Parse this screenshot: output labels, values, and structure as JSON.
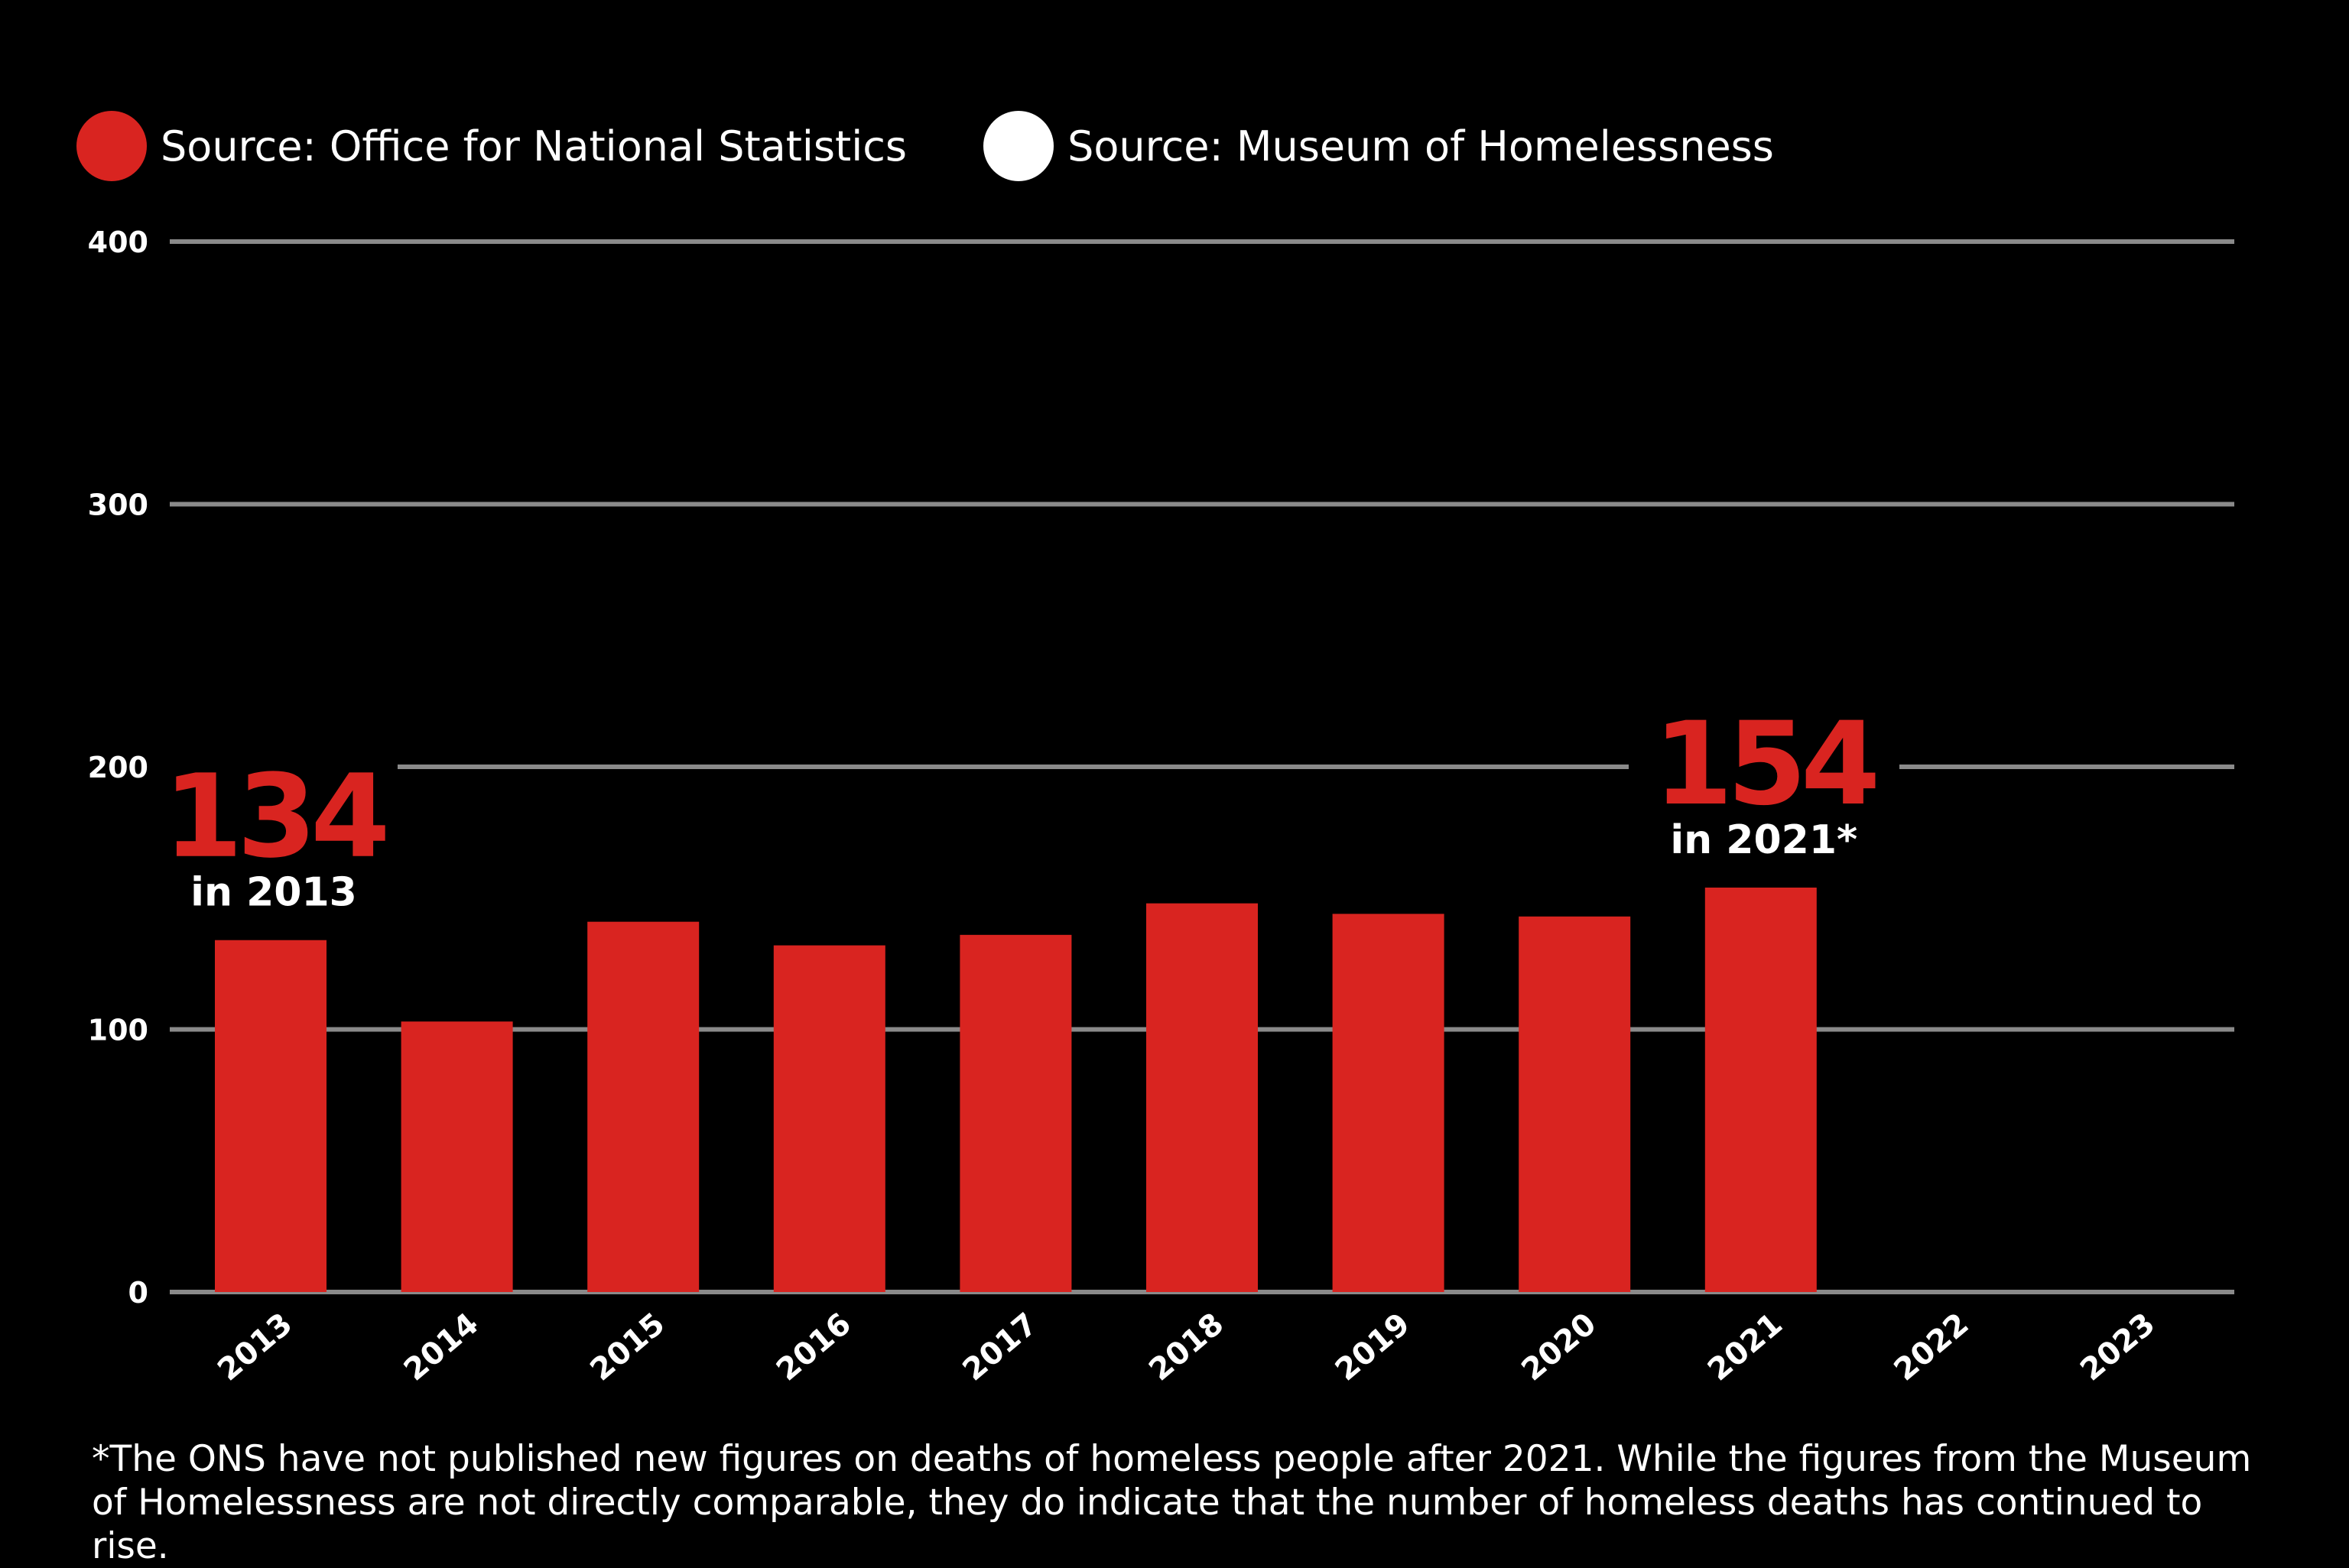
{
  "legend": [
    {
      "label": "Source: Office for National Statistics",
      "color": "#d92420"
    },
    {
      "label": "Source: Museum of Homelessness",
      "color": "#ffffff"
    }
  ],
  "chart_data": {
    "type": "bar",
    "categories": [
      "2013",
      "2014",
      "2015",
      "2016",
      "2017",
      "2018",
      "2019",
      "2020",
      "2021",
      "2022",
      "2023"
    ],
    "series": [
      {
        "name": "Source: Office for National Statistics",
        "color": "#d92420",
        "values": [
          134,
          103,
          141,
          132,
          136,
          148,
          144,
          143,
          154,
          null,
          null
        ]
      },
      {
        "name": "Source: Museum of Homelessness",
        "color": "#ffffff",
        "values": [
          null,
          null,
          null,
          null,
          null,
          null,
          null,
          null,
          null,
          null,
          null
        ]
      }
    ],
    "ylim": [
      0,
      400
    ],
    "yticks": [
      0,
      100,
      200,
      300,
      400
    ],
    "grid": true,
    "annotations": [
      {
        "category": "2013",
        "value": "134",
        "text": "in 2013"
      },
      {
        "category": "2021",
        "value": "154",
        "text": "in 2021*"
      }
    ]
  },
  "footnote": "*The ONS have not published new figures on deaths of homeless people after 2021. While the figures from the Museum of Homelessness are not directly comparable, they do indicate that the number of homeless deaths has continued to rise.",
  "colors": {
    "background": "#000000",
    "bar": "#d92420",
    "grid": "#8a8a8a",
    "text": "#ffffff"
  }
}
